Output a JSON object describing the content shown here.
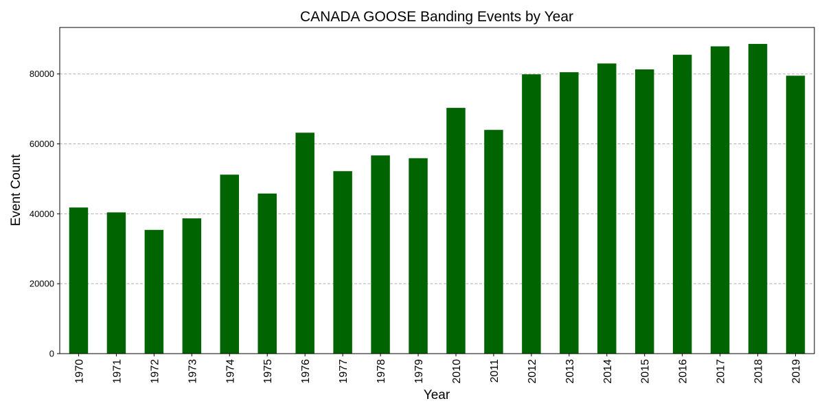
{
  "chart_data": {
    "type": "bar",
    "title": "CANADA GOOSE Banding Events by Year",
    "xlabel": "Year",
    "ylabel": "Event Count",
    "categories": [
      "1970",
      "1971",
      "1972",
      "1973",
      "1974",
      "1975",
      "1976",
      "1977",
      "1978",
      "1979",
      "2010",
      "2011",
      "2012",
      "2013",
      "2014",
      "2015",
      "2016",
      "2017",
      "2018",
      "2019"
    ],
    "values": [
      41800,
      40400,
      35400,
      38700,
      51200,
      45800,
      63200,
      52200,
      56700,
      55900,
      70300,
      64000,
      79900,
      80500,
      83000,
      81300,
      85500,
      87900,
      88600,
      79500
    ],
    "yticks": [
      0,
      20000,
      40000,
      60000,
      80000
    ],
    "ylim": [
      0,
      93300
    ],
    "bar_color": "#006400",
    "grid": "y-dashed",
    "legend": "none"
  }
}
